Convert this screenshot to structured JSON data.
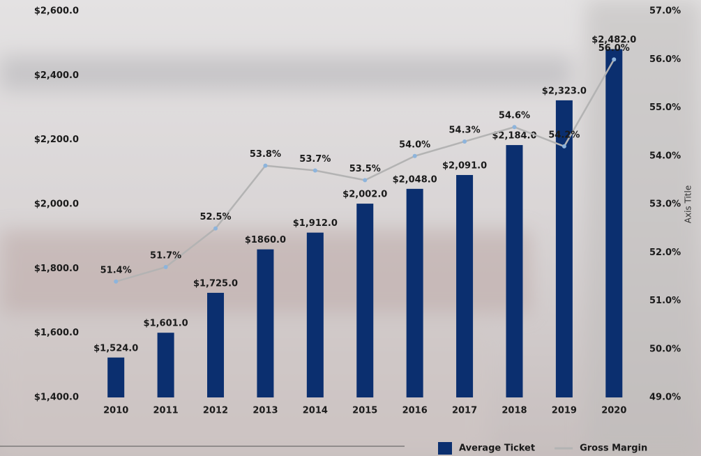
{
  "chart_data": {
    "type": "bar-line",
    "categories": [
      "2010",
      "2011",
      "2012",
      "2013",
      "2014",
      "2015",
      "2016",
      "2017",
      "2018",
      "2019",
      "2020"
    ],
    "series": [
      {
        "name": "Average Ticket",
        "type": "bar",
        "color": "#0b2f6f",
        "values": [
          1524,
          1601,
          1725,
          1860,
          1912,
          2002,
          2048,
          2091,
          2184,
          2323,
          2482
        ],
        "value_labels": [
          "$1,524.0",
          "$1,601.0",
          "$1,725.0",
          "$1860.0",
          "$1,912.0",
          "$2,002.0",
          "$2,048.0",
          "$2,091.0",
          "$2,184.0",
          "$2,323.0",
          "$2,482.0"
        ]
      },
      {
        "name": "Gross Margin",
        "type": "line",
        "axis": "y2",
        "color": "#b3b3b3",
        "marker_color": "#8db4dc",
        "values": [
          51.4,
          51.7,
          52.5,
          53.8,
          53.7,
          53.5,
          54.0,
          54.3,
          54.6,
          54.2,
          56.0
        ],
        "value_labels": [
          "51.4%",
          "51.7%",
          "52.5%",
          "53.8%",
          "53.7%",
          "53.5%",
          "54.0%",
          "54.3%",
          "54.6%",
          "54.2%",
          "56.0%"
        ]
      }
    ],
    "ylim": [
      1400,
      2600
    ],
    "yticks": [
      {
        "value": 1400,
        "label": "$1,400.0"
      },
      {
        "value": 1600,
        "label": "$1,600.0"
      },
      {
        "value": 1800,
        "label": "$1,800.0"
      },
      {
        "value": 2000,
        "label": "$2,000.0"
      },
      {
        "value": 2200,
        "label": "$2,200.0"
      },
      {
        "value": 2400,
        "label": "$2,400.0"
      },
      {
        "value": 2600,
        "label": "$2,600.0"
      }
    ],
    "y2lim": [
      49,
      57
    ],
    "y2ticks": [
      {
        "value": 49,
        "label": "49.0%"
      },
      {
        "value": 50,
        "label": "50.0%"
      },
      {
        "value": 51,
        "label": "51.0%"
      },
      {
        "value": 52,
        "label": "52.0%"
      },
      {
        "value": 53,
        "label": "53.0%"
      },
      {
        "value": 54,
        "label": "54.0%"
      },
      {
        "value": 55,
        "label": "55.0%"
      },
      {
        "value": 56,
        "label": "56.0%"
      },
      {
        "value": 57,
        "label": "57.0%"
      }
    ],
    "y2_label": "Axis Title",
    "legend": "bottom-right"
  }
}
